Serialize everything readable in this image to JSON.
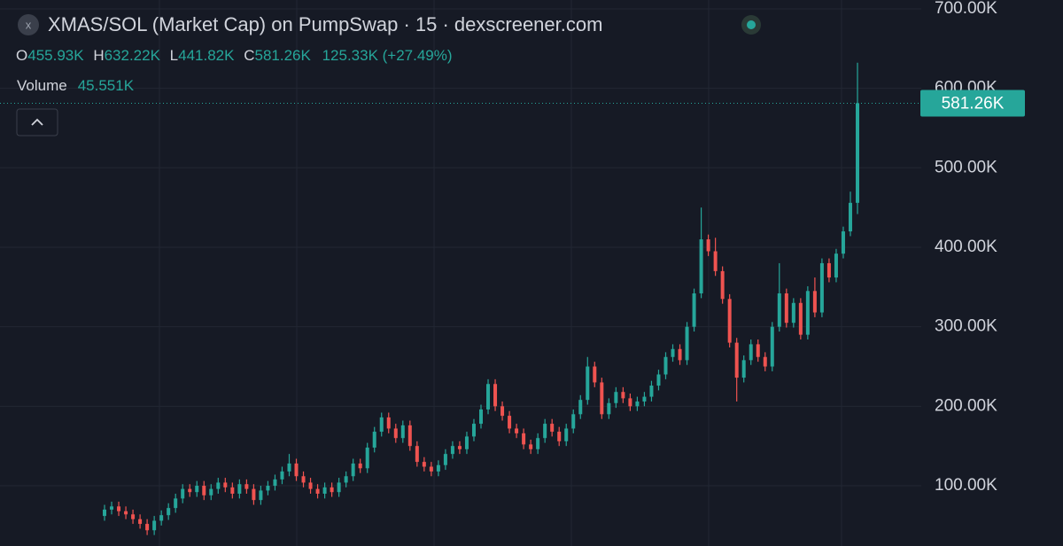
{
  "chart_data": {
    "type": "candlestick",
    "title": "XMAS/SOL (Market Cap) on PumpSwap · 15 · dexscreener.com",
    "legend": {
      "o_label": "O",
      "open": "455.93K",
      "h_label": "H",
      "high": "632.22K",
      "l_label": "L",
      "low": "441.82K",
      "c_label": "C",
      "close": "581.26K",
      "change": "125.33K (+27.49%)",
      "volume_label": "Volume",
      "volume": "45.551K"
    },
    "last_price_label": "581.26K",
    "up_color": "#26a69a",
    "down_color": "#ef5350",
    "ylim": [
      24.2,
      711.1
    ],
    "yticks": [
      {
        "value": 100,
        "label": "100.00K"
      },
      {
        "value": 200,
        "label": "200.00K"
      },
      {
        "value": 300,
        "label": "300.00K"
      },
      {
        "value": 400,
        "label": "400.00K"
      },
      {
        "value": 500,
        "label": "500.00K"
      },
      {
        "value": 600,
        "label": "600.00K"
      },
      {
        "value": 700,
        "label": "700.00K"
      }
    ],
    "grid": true,
    "open": [
      62,
      70,
      74,
      68,
      64,
      58,
      52,
      44,
      56,
      63,
      72,
      84,
      96,
      92,
      100,
      88,
      96,
      104,
      98,
      90,
      102,
      96,
      82,
      94,
      100,
      108,
      118,
      128,
      112,
      104,
      96,
      90,
      98,
      92,
      104,
      112,
      128,
      122,
      148,
      168,
      186,
      172,
      160,
      176,
      150,
      130,
      124,
      118,
      126,
      140,
      150,
      146,
      162,
      178,
      196,
      228,
      200,
      188,
      172,
      166,
      152,
      146,
      160,
      178,
      168,
      156,
      172,
      190,
      208,
      250,
      230,
      190,
      204,
      218,
      210,
      200,
      206,
      212,
      226,
      240,
      262,
      272,
      258,
      300,
      342,
      410,
      395,
      370,
      335,
      280,
      236,
      258,
      278,
      262,
      250,
      300,
      342,
      305,
      330,
      290,
      345,
      318,
      380,
      362,
      392,
      420,
      455.93
    ],
    "high": [
      76,
      80,
      80,
      74,
      70,
      64,
      58,
      62,
      69,
      78,
      90,
      102,
      102,
      106,
      106,
      102,
      110,
      110,
      104,
      108,
      108,
      102,
      100,
      106,
      114,
      124,
      140,
      134,
      118,
      110,
      102,
      104,
      104,
      110,
      118,
      134,
      134,
      154,
      174,
      192,
      192,
      178,
      182,
      182,
      156,
      136,
      130,
      132,
      146,
      156,
      156,
      168,
      184,
      202,
      234,
      234,
      206,
      194,
      178,
      172,
      158,
      166,
      184,
      184,
      174,
      178,
      196,
      214,
      262,
      256,
      236,
      210,
      224,
      224,
      216,
      212,
      218,
      232,
      246,
      268,
      278,
      278,
      306,
      348,
      450,
      416,
      412,
      376,
      341,
      286,
      264,
      284,
      284,
      268,
      306,
      380,
      348,
      336,
      336,
      351,
      362,
      386,
      386,
      398,
      426,
      470,
      632.22
    ],
    "low": [
      56,
      64,
      62,
      58,
      52,
      46,
      38,
      38,
      50,
      57,
      66,
      78,
      86,
      86,
      82,
      82,
      90,
      92,
      84,
      84,
      90,
      76,
      76,
      88,
      94,
      102,
      112,
      106,
      98,
      90,
      84,
      84,
      86,
      86,
      98,
      106,
      116,
      116,
      142,
      162,
      166,
      154,
      154,
      144,
      124,
      118,
      112,
      112,
      120,
      134,
      140,
      140,
      156,
      172,
      190,
      194,
      182,
      166,
      160,
      146,
      140,
      140,
      154,
      162,
      150,
      150,
      166,
      184,
      202,
      224,
      184,
      184,
      198,
      204,
      194,
      194,
      200,
      206,
      220,
      234,
      256,
      252,
      252,
      294,
      336,
      389,
      364,
      329,
      274,
      206,
      230,
      252,
      256,
      244,
      244,
      294,
      299,
      299,
      284,
      284,
      312,
      312,
      356,
      356,
      386,
      414,
      441.82
    ],
    "close": [
      70,
      74,
      68,
      64,
      58,
      52,
      44,
      56,
      63,
      72,
      84,
      96,
      92,
      100,
      88,
      96,
      104,
      98,
      90,
      102,
      96,
      82,
      94,
      100,
      108,
      118,
      128,
      112,
      104,
      96,
      90,
      98,
      92,
      104,
      112,
      128,
      122,
      148,
      168,
      186,
      172,
      160,
      176,
      150,
      130,
      124,
      118,
      126,
      140,
      150,
      146,
      162,
      178,
      196,
      228,
      200,
      188,
      172,
      166,
      152,
      146,
      160,
      178,
      168,
      156,
      172,
      190,
      208,
      250,
      230,
      190,
      204,
      218,
      210,
      200,
      206,
      212,
      226,
      240,
      262,
      272,
      258,
      300,
      342,
      410,
      395,
      370,
      335,
      280,
      236,
      258,
      278,
      262,
      250,
      300,
      342,
      305,
      330,
      290,
      345,
      318,
      380,
      362,
      392,
      420,
      455.93,
      581.26
    ]
  }
}
